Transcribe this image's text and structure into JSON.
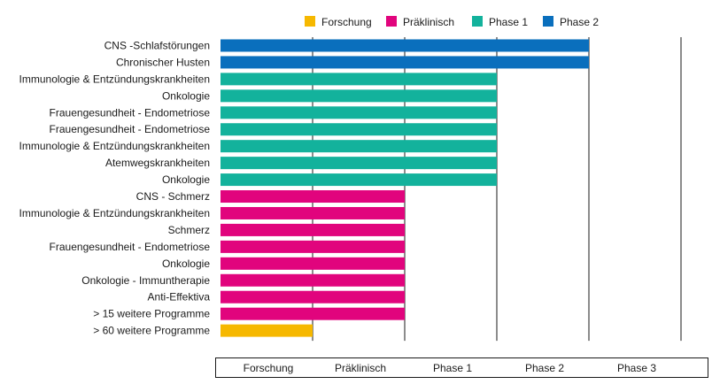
{
  "chart_data": {
    "type": "bar",
    "orientation": "horizontal",
    "stages": [
      "Forschung",
      "Präklinisch",
      "Phase 1",
      "Phase 2",
      "Phase 3"
    ],
    "legend": [
      {
        "name": "Forschung",
        "color": "#f6b800"
      },
      {
        "name": "Präklinisch",
        "color": "#e1047d"
      },
      {
        "name": "Phase 1",
        "color": "#13b29c"
      },
      {
        "name": "Phase 2",
        "color": "#0a6fbd"
      }
    ],
    "legend_position": "top-right",
    "categories": [
      "CNS -Schlafstörungen",
      "Chronischer Husten",
      "Immunologie & Entzündungskrankheiten",
      "Onkologie",
      "Frauengesundheit - Endometriose",
      "Frauengesundheit - Endometriose",
      "Immunologie & Entzündungskrankheiten",
      "Atemwegskrankheiten",
      "Onkologie",
      "CNS - Schmerz",
      "Immunologie & Entzündungskrankheiten",
      "Schmerz",
      "Frauengesundheit - Endometriose",
      "Onkologie",
      "Onkologie - Immuntherapie",
      "Anti-Effektiva",
      "> 15 weitere Programme",
      "> 60 weitere Programme"
    ],
    "values": [
      "Phase 2",
      "Phase 2",
      "Phase 1",
      "Phase 1",
      "Phase 1",
      "Phase 1",
      "Phase 1",
      "Phase 1",
      "Phase 1",
      "Präklinisch",
      "Präklinisch",
      "Präklinisch",
      "Präklinisch",
      "Präklinisch",
      "Präklinisch",
      "Präklinisch",
      "Präklinisch",
      "Forschung"
    ],
    "xlabel": "",
    "ylabel": "",
    "grid": "vertical"
  }
}
